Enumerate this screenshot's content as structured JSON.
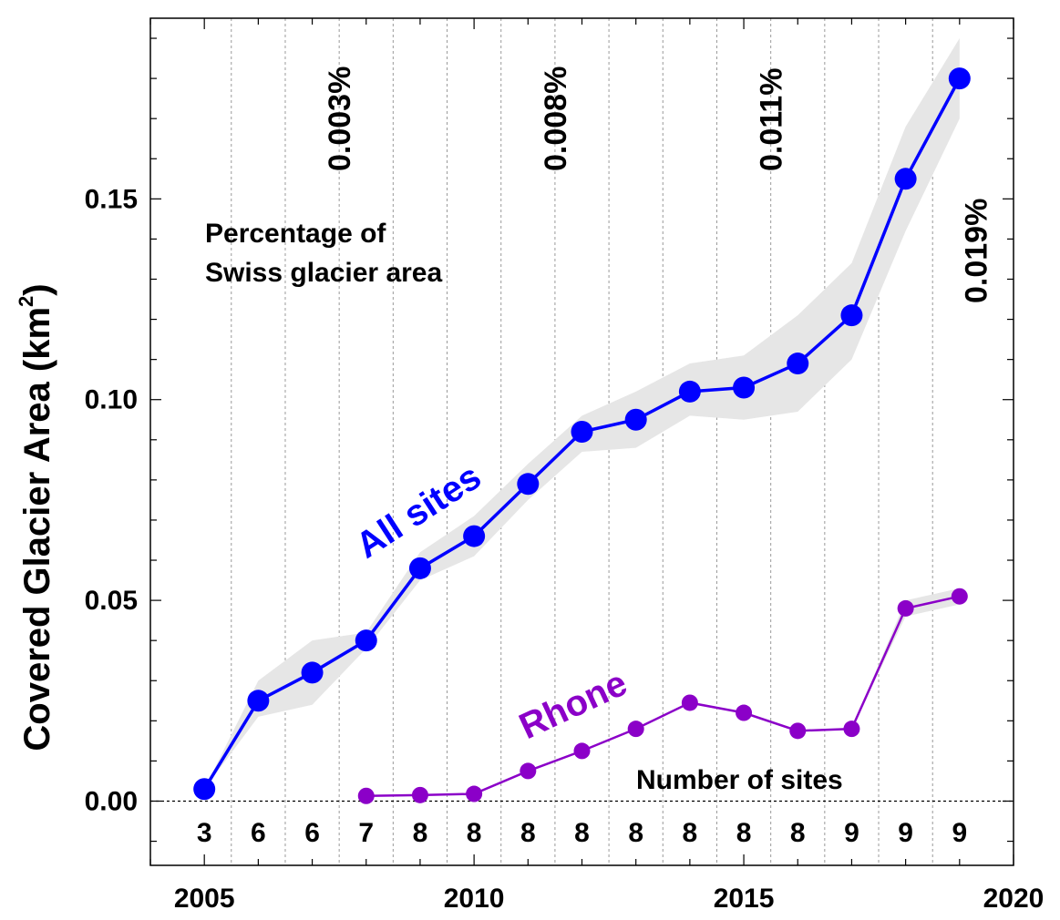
{
  "chart_data": {
    "type": "line",
    "ylabel": "Covered Glacier Area (km²)",
    "ylabel_main": "Covered Glacier Area (km",
    "ylabel_sup": "2",
    "ylabel_close": ")",
    "xlim": [
      2004,
      2020
    ],
    "ylim": [
      -0.016,
      0.195
    ],
    "xticks": [
      2005,
      2010,
      2015,
      2020
    ],
    "xtick_labels": [
      "2005",
      "2010",
      "2015",
      "2020"
    ],
    "yticks": [
      0.0,
      0.05,
      0.1,
      0.15
    ],
    "ytick_labels": [
      "0.00",
      "0.05",
      "0.10",
      "0.15"
    ],
    "grid": "vertical dotted lines between years",
    "series": [
      {
        "name": "All sites",
        "color": "#0000ff",
        "x": [
          2005,
          2006,
          2007,
          2008,
          2009,
          2010,
          2011,
          2012,
          2013,
          2014,
          2015,
          2016,
          2017,
          2018,
          2019
        ],
        "values": [
          0.003,
          0.025,
          0.032,
          0.04,
          0.058,
          0.066,
          0.079,
          0.092,
          0.095,
          0.102,
          0.103,
          0.109,
          0.121,
          0.155,
          0.18
        ],
        "band_lower": [
          0.003,
          0.021,
          0.024,
          0.038,
          0.055,
          0.061,
          0.075,
          0.087,
          0.088,
          0.096,
          0.095,
          0.097,
          0.11,
          0.142,
          0.17
        ],
        "band_upper": [
          0.003,
          0.03,
          0.04,
          0.042,
          0.062,
          0.071,
          0.084,
          0.096,
          0.102,
          0.109,
          0.111,
          0.121,
          0.134,
          0.168,
          0.19
        ]
      },
      {
        "name": "Rhone",
        "color": "#8b00c8",
        "x": [
          2008,
          2009,
          2010,
          2011,
          2012,
          2013,
          2014,
          2015,
          2016,
          2017,
          2018,
          2019
        ],
        "values": [
          0.0013,
          0.0015,
          0.0018,
          0.0075,
          0.0125,
          0.018,
          0.0245,
          0.022,
          0.0175,
          0.018,
          0.048,
          0.051
        ],
        "band_lower": [
          0.0013,
          0.0015,
          0.0018,
          0.0075,
          0.0125,
          0.018,
          0.0245,
          0.022,
          0.0175,
          0.018,
          0.046,
          0.049
        ],
        "band_upper": [
          0.0013,
          0.0015,
          0.0018,
          0.0075,
          0.0125,
          0.018,
          0.0245,
          0.022,
          0.0175,
          0.018,
          0.05,
          0.053
        ]
      }
    ],
    "number_of_sites": {
      "label": "Number of sites",
      "years": [
        2005,
        2006,
        2007,
        2008,
        2009,
        2010,
        2011,
        2012,
        2013,
        2014,
        2015,
        2016,
        2017,
        2018,
        2019
      ],
      "counts": [
        "3",
        "6",
        "6",
        "7",
        "8",
        "8",
        "8",
        "8",
        "8",
        "8",
        "8",
        "8",
        "9",
        "9",
        "9"
      ]
    },
    "percentage_annotations": {
      "label_line1": "Percentage of",
      "label_line2": "Swiss glacier area",
      "items": [
        {
          "x": 2007.5,
          "text": "0.003%"
        },
        {
          "x": 2011.5,
          "text": "0.008%"
        },
        {
          "x": 2015.5,
          "text": "0.011%"
        },
        {
          "x": 2019.3,
          "text": "0.019%"
        }
      ]
    },
    "band_color": "#e6e6e6"
  }
}
